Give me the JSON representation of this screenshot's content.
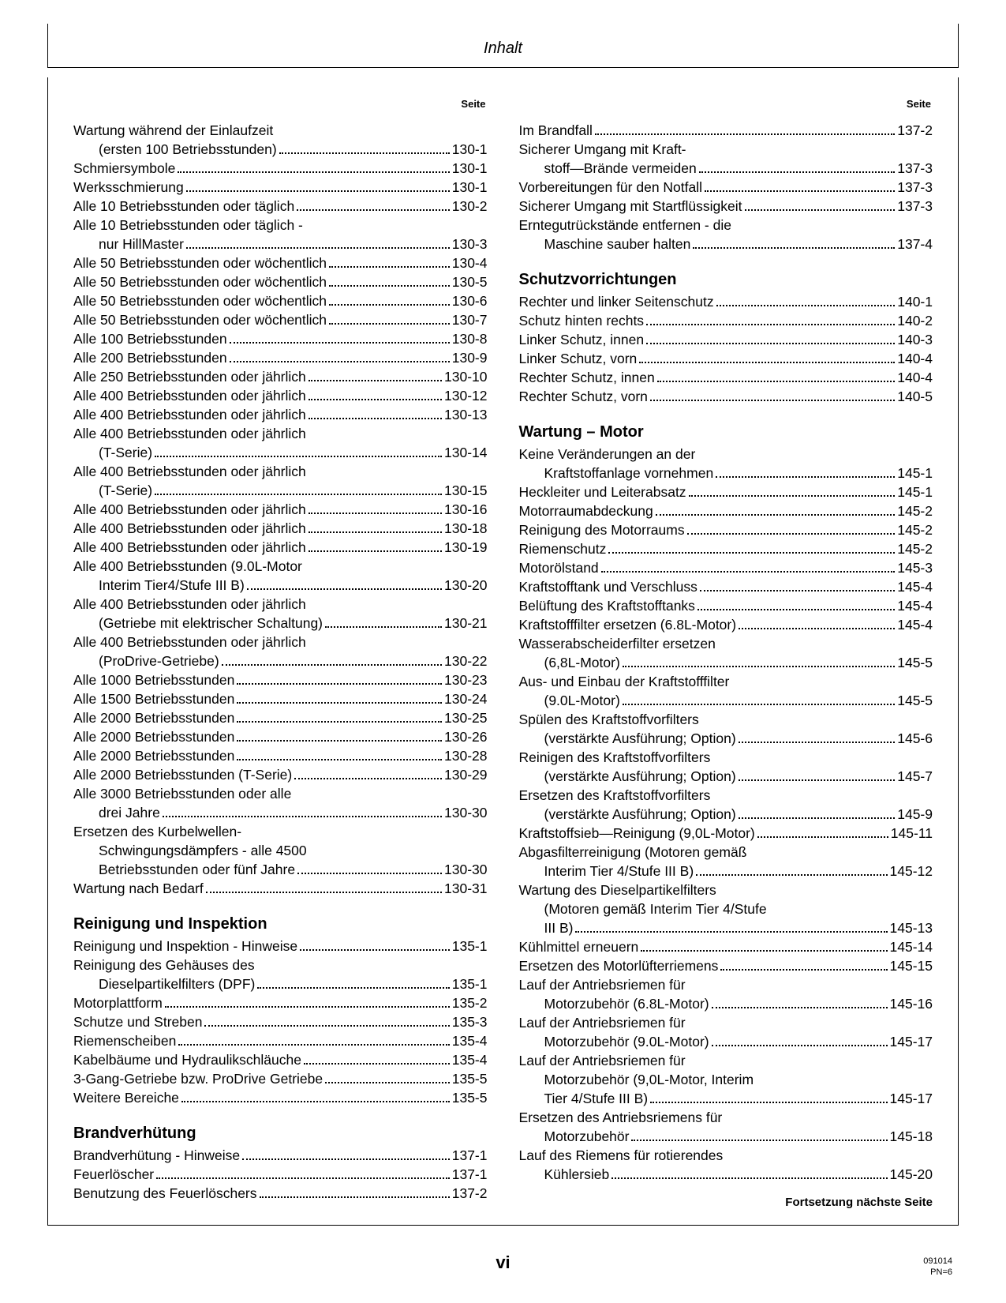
{
  "header": {
    "title": "Inhalt"
  },
  "columns": {
    "page_label": "Seite",
    "left": [
      {
        "type": "entry",
        "lines": [
          "Wartung während der Einlaufzeit",
          "(ersten 100 Betriebsstunden)"
        ],
        "page": "130-1",
        "indent_last": true
      },
      {
        "type": "entry",
        "lines": [
          "Schmiersymbole"
        ],
        "page": "130-1"
      },
      {
        "type": "entry",
        "lines": [
          "Werksschmierung"
        ],
        "page": "130-1"
      },
      {
        "type": "entry",
        "lines": [
          "Alle 10 Betriebsstunden oder täglich"
        ],
        "page": "130-2"
      },
      {
        "type": "entry",
        "lines": [
          "Alle 10 Betriebsstunden oder täglich -",
          "nur HillMaster"
        ],
        "page": "130-3",
        "indent_last": true
      },
      {
        "type": "entry",
        "lines": [
          "Alle 50 Betriebsstunden oder wöchentlich"
        ],
        "page": "130-4"
      },
      {
        "type": "entry",
        "lines": [
          "Alle 50 Betriebsstunden oder wöchentlich"
        ],
        "page": "130-5"
      },
      {
        "type": "entry",
        "lines": [
          "Alle 50 Betriebsstunden oder wöchentlich"
        ],
        "page": "130-6"
      },
      {
        "type": "entry",
        "lines": [
          "Alle 50 Betriebsstunden oder wöchentlich"
        ],
        "page": "130-7"
      },
      {
        "type": "entry",
        "lines": [
          "Alle 100 Betriebsstunden"
        ],
        "page": "130-8"
      },
      {
        "type": "entry",
        "lines": [
          "Alle 200 Betriebsstunden"
        ],
        "page": "130-9"
      },
      {
        "type": "entry",
        "lines": [
          "Alle 250 Betriebsstunden oder jährlich"
        ],
        "page": "130-10"
      },
      {
        "type": "entry",
        "lines": [
          "Alle 400 Betriebsstunden oder jährlich"
        ],
        "page": "130-12"
      },
      {
        "type": "entry",
        "lines": [
          "Alle 400 Betriebsstunden oder jährlich"
        ],
        "page": "130-13"
      },
      {
        "type": "entry",
        "lines": [
          "Alle 400 Betriebsstunden oder jährlich",
          "(T-Serie)"
        ],
        "page": "130-14",
        "indent_last": true
      },
      {
        "type": "entry",
        "lines": [
          "Alle 400 Betriebsstunden oder jährlich",
          "(T-Serie)"
        ],
        "page": "130-15",
        "indent_last": true
      },
      {
        "type": "entry",
        "lines": [
          "Alle 400 Betriebsstunden oder jährlich"
        ],
        "page": "130-16"
      },
      {
        "type": "entry",
        "lines": [
          "Alle 400 Betriebsstunden oder jährlich"
        ],
        "page": "130-18"
      },
      {
        "type": "entry",
        "lines": [
          "Alle 400 Betriebsstunden oder jährlich"
        ],
        "page": "130-19"
      },
      {
        "type": "entry",
        "lines": [
          "Alle 400 Betriebsstunden (9.0L-Motor",
          "Interim Tier4/Stufe III B)"
        ],
        "page": "130-20",
        "indent_last": true
      },
      {
        "type": "entry",
        "lines": [
          "Alle 400 Betriebsstunden oder jährlich",
          "(Getriebe mit elektrischer Schaltung)"
        ],
        "page": "130-21",
        "indent_last": true
      },
      {
        "type": "entry",
        "lines": [
          "Alle 400 Betriebsstunden oder jährlich",
          "(ProDrive-Getriebe)"
        ],
        "page": "130-22",
        "indent_last": true
      },
      {
        "type": "entry",
        "lines": [
          "Alle 1000 Betriebsstunden"
        ],
        "page": "130-23"
      },
      {
        "type": "entry",
        "lines": [
          "Alle 1500 Betriebsstunden"
        ],
        "page": "130-24"
      },
      {
        "type": "entry",
        "lines": [
          "Alle 2000 Betriebsstunden"
        ],
        "page": "130-25"
      },
      {
        "type": "entry",
        "lines": [
          "Alle 2000 Betriebsstunden"
        ],
        "page": "130-26"
      },
      {
        "type": "entry",
        "lines": [
          "Alle 2000 Betriebsstunden"
        ],
        "page": "130-28"
      },
      {
        "type": "entry",
        "lines": [
          "Alle 2000 Betriebsstunden (T-Serie)"
        ],
        "page": "130-29"
      },
      {
        "type": "entry",
        "lines": [
          "Alle 3000 Betriebsstunden oder alle",
          "drei Jahre"
        ],
        "page": "130-30",
        "indent_last": true
      },
      {
        "type": "entry",
        "lines": [
          "Ersetzen des Kurbelwellen-",
          "Schwingungsdämpfers - alle 4500",
          "Betriebsstunden oder fünf Jahre"
        ],
        "page": "130-30",
        "indent_last": true
      },
      {
        "type": "entry",
        "lines": [
          "Wartung nach Bedarf"
        ],
        "page": "130-31"
      },
      {
        "type": "heading",
        "text": "Reinigung und Inspektion"
      },
      {
        "type": "entry",
        "lines": [
          "Reinigung und Inspektion - Hinweise"
        ],
        "page": "135-1"
      },
      {
        "type": "entry",
        "lines": [
          "Reinigung des Gehäuses des",
          "Dieselpartikelfilters (DPF)"
        ],
        "page": "135-1",
        "indent_last": true
      },
      {
        "type": "entry",
        "lines": [
          "Motorplattform"
        ],
        "page": "135-2"
      },
      {
        "type": "entry",
        "lines": [
          "Schutze und Streben"
        ],
        "page": "135-3"
      },
      {
        "type": "entry",
        "lines": [
          "Riemenscheiben"
        ],
        "page": "135-4"
      },
      {
        "type": "entry",
        "lines": [
          "Kabelbäume und Hydraulikschläuche"
        ],
        "page": "135-4"
      },
      {
        "type": "entry",
        "lines": [
          "3-Gang-Getriebe bzw. ProDrive Getriebe"
        ],
        "page": "135-5"
      },
      {
        "type": "entry",
        "lines": [
          "Weitere Bereiche"
        ],
        "page": "135-5"
      },
      {
        "type": "heading",
        "text": "Brandverhütung"
      },
      {
        "type": "entry",
        "lines": [
          "Brandverhütung - Hinweise"
        ],
        "page": "137-1"
      },
      {
        "type": "entry",
        "lines": [
          "Feuerlöscher"
        ],
        "page": "137-1"
      },
      {
        "type": "entry",
        "lines": [
          "Benutzung des Feuerlöschers"
        ],
        "page": "137-2"
      }
    ],
    "right": [
      {
        "type": "entry",
        "lines": [
          "Im Brandfall"
        ],
        "page": "137-2"
      },
      {
        "type": "entry",
        "lines": [
          "Sicherer Umgang mit Kraft-",
          "stoff—Brände vermeiden"
        ],
        "page": "137-3",
        "indent_last": true
      },
      {
        "type": "entry",
        "lines": [
          "Vorbereitungen für den Notfall"
        ],
        "page": "137-3"
      },
      {
        "type": "entry",
        "lines": [
          "Sicherer Umgang mit Startflüssigkeit"
        ],
        "page": "137-3"
      },
      {
        "type": "entry",
        "lines": [
          "Erntegutrückstände entfernen - die",
          "Maschine sauber halten"
        ],
        "page": "137-4",
        "indent_last": true
      },
      {
        "type": "heading",
        "text": "Schutzvorrichtungen"
      },
      {
        "type": "entry",
        "lines": [
          "Rechter und linker Seitenschutz"
        ],
        "page": "140-1"
      },
      {
        "type": "entry",
        "lines": [
          "Schutz hinten rechts"
        ],
        "page": "140-2"
      },
      {
        "type": "entry",
        "lines": [
          "Linker Schutz, innen"
        ],
        "page": "140-3"
      },
      {
        "type": "entry",
        "lines": [
          "Linker Schutz, vorn"
        ],
        "page": "140-4"
      },
      {
        "type": "entry",
        "lines": [
          "Rechter Schutz, innen"
        ],
        "page": "140-4"
      },
      {
        "type": "entry",
        "lines": [
          "Rechter Schutz, vorn"
        ],
        "page": "140-5"
      },
      {
        "type": "heading",
        "text": "Wartung – Motor"
      },
      {
        "type": "entry",
        "lines": [
          "Keine Veränderungen an der",
          "Kraftstoffanlage vornehmen"
        ],
        "page": "145-1",
        "indent_last": true
      },
      {
        "type": "entry",
        "lines": [
          "Heckleiter und Leiterabsatz"
        ],
        "page": "145-1"
      },
      {
        "type": "entry",
        "lines": [
          "Motorraumabdeckung"
        ],
        "page": "145-2"
      },
      {
        "type": "entry",
        "lines": [
          "Reinigung des Motorraums"
        ],
        "page": "145-2"
      },
      {
        "type": "entry",
        "lines": [
          "Riemenschutz"
        ],
        "page": "145-2"
      },
      {
        "type": "entry",
        "lines": [
          "Motorölstand"
        ],
        "page": "145-3"
      },
      {
        "type": "entry",
        "lines": [
          "Kraftstofftank und Verschluss"
        ],
        "page": "145-4"
      },
      {
        "type": "entry",
        "lines": [
          "Belüftung des Kraftstofftanks"
        ],
        "page": "145-4"
      },
      {
        "type": "entry",
        "lines": [
          "Kraftstofffilter ersetzen (6.8L-Motor)"
        ],
        "page": "145-4"
      },
      {
        "type": "entry",
        "lines": [
          "Wasserabscheiderfilter ersetzen",
          "(6,8L-Motor)"
        ],
        "page": "145-5",
        "indent_last": true
      },
      {
        "type": "entry",
        "lines": [
          "Aus- und Einbau der Kraftstofffilter",
          "(9.0L-Motor)"
        ],
        "page": "145-5",
        "indent_last": true
      },
      {
        "type": "entry",
        "lines": [
          "Spülen des Kraftstoffvorfilters",
          "(verstärkte Ausführung; Option)"
        ],
        "page": "145-6",
        "indent_last": true
      },
      {
        "type": "entry",
        "lines": [
          "Reinigen des Kraftstoffvorfilters",
          "(verstärkte Ausführung; Option)"
        ],
        "page": "145-7",
        "indent_last": true
      },
      {
        "type": "entry",
        "lines": [
          "Ersetzen des Kraftstoffvorfilters",
          "(verstärkte Ausführung; Option)"
        ],
        "page": "145-9",
        "indent_last": true
      },
      {
        "type": "entry",
        "lines": [
          "Kraftstoffsieb—Reinigung (9,0L-Motor)"
        ],
        "page": "145-11"
      },
      {
        "type": "entry",
        "lines": [
          "Abgasfilterreinigung (Motoren gemäß",
          "Interim Tier 4/Stufe III B)"
        ],
        "page": "145-12",
        "indent_last": true
      },
      {
        "type": "entry",
        "lines": [
          "Wartung des Dieselpartikelfilters",
          "(Motoren gemäß Interim Tier 4/Stufe",
          "III B)"
        ],
        "page": "145-13",
        "indent_last": true
      },
      {
        "type": "entry",
        "lines": [
          "Kühlmittel erneuern"
        ],
        "page": "145-14"
      },
      {
        "type": "entry",
        "lines": [
          "Ersetzen des Motorlüfterriemens"
        ],
        "page": "145-15"
      },
      {
        "type": "entry",
        "lines": [
          "Lauf der Antriebsriemen für",
          "Motorzubehör (6.8L-Motor)"
        ],
        "page": "145-16",
        "indent_last": true
      },
      {
        "type": "entry",
        "lines": [
          "Lauf der Antriebsriemen für",
          "Motorzubehör (9.0L-Motor)"
        ],
        "page": "145-17",
        "indent_last": true
      },
      {
        "type": "entry",
        "lines": [
          "Lauf der Antriebsriemen für",
          "Motorzubehör (9,0L-Motor, Interim",
          "Tier 4/Stufe III B)"
        ],
        "page": "145-17",
        "indent_last": true
      },
      {
        "type": "entry",
        "lines": [
          "Ersetzen des Antriebsriemens für",
          "Motorzubehör"
        ],
        "page": "145-18",
        "indent_last": true
      },
      {
        "type": "entry",
        "lines": [
          "Lauf des Riemens für rotierendes",
          "Kühlersieb"
        ],
        "page": "145-20",
        "indent_last": true
      }
    ]
  },
  "continuation": "Fortsetzung nächste Seite",
  "footer": {
    "center": "vi",
    "right_small": "091014",
    "right_pn": "PN=6"
  }
}
